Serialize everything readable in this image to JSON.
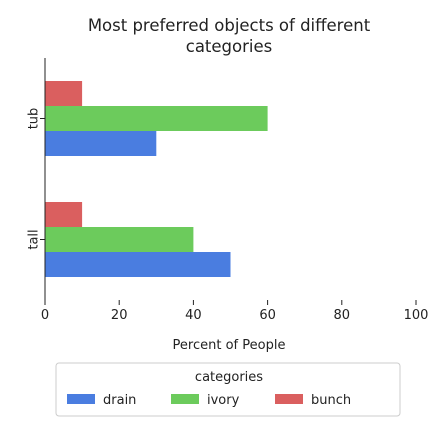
{
  "chart_data": {
    "type": "bar",
    "orientation": "horizontal",
    "title_lines": [
      "Most preferred objects of different",
      "categories"
    ],
    "xlabel": "Percent of People",
    "ylabel": "",
    "xlim": [
      0,
      100
    ],
    "x_ticks": [
      0,
      20,
      40,
      60,
      80,
      100
    ],
    "categories": [
      "tub",
      "tall"
    ],
    "series": [
      {
        "name": "drain",
        "color": "#4a7de0",
        "values": [
          30,
          50
        ]
      },
      {
        "name": "ivory",
        "color": "#6ccb5c",
        "values": [
          60,
          40
        ]
      },
      {
        "name": "bunch",
        "color": "#da5f5f",
        "values": [
          10,
          10
        ]
      }
    ],
    "legend": {
      "title": "categories",
      "placement": "bottom"
    },
    "grid": false
  }
}
